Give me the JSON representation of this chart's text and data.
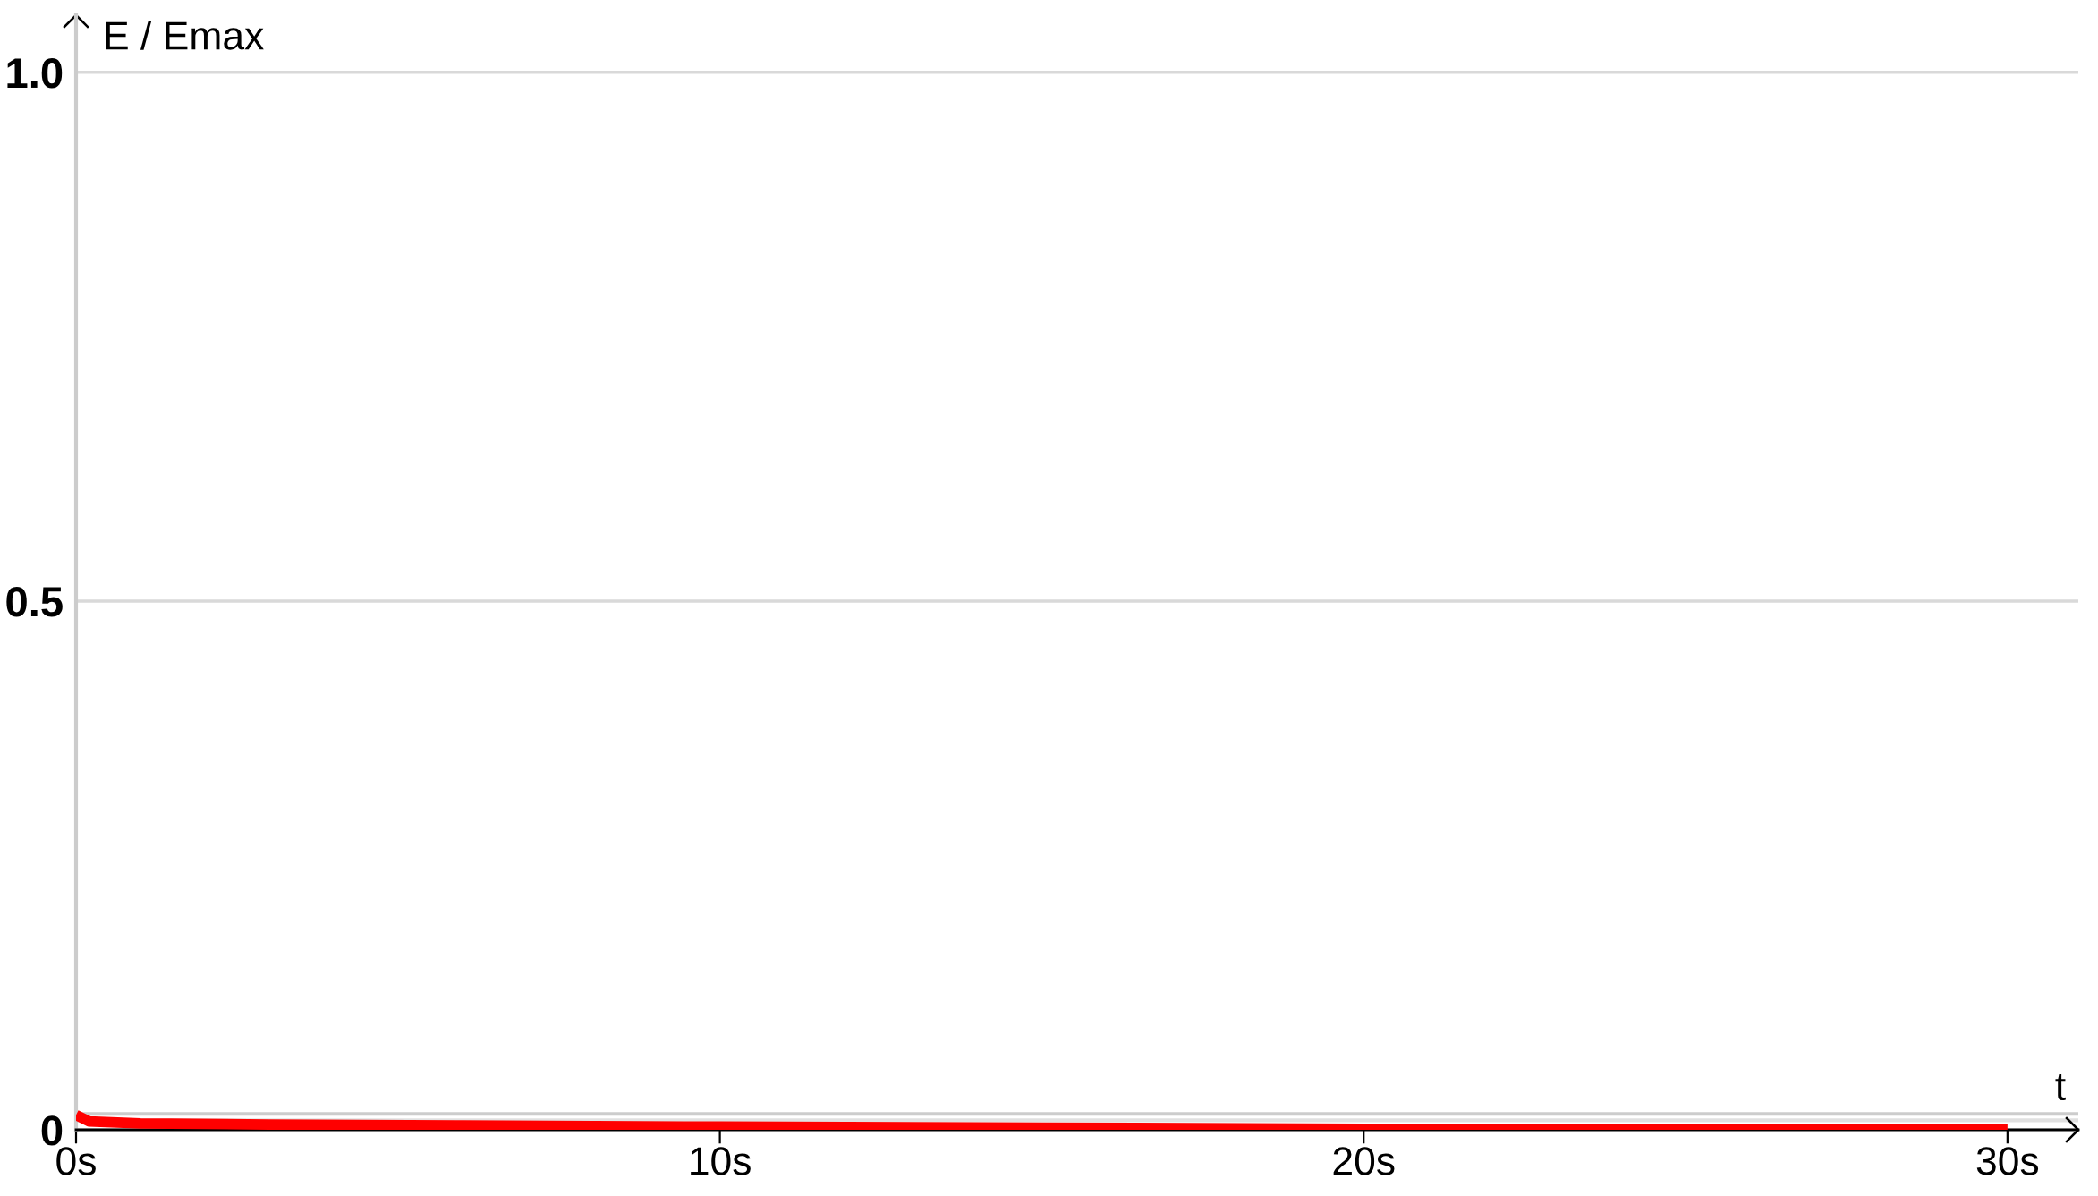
{
  "chart_data": {
    "type": "line",
    "xlabel": "t",
    "ylabel": "E / Emax",
    "x": [
      0,
      0.2,
      1,
      3,
      6,
      10,
      15,
      20,
      25,
      30
    ],
    "values": [
      0.014,
      0.008,
      0.006,
      0.005,
      0.004,
      0.003,
      0.002,
      0.001,
      0.001,
      0
    ],
    "color": "#ff0000",
    "xlim": [
      0,
      31.1
    ],
    "ylim": [
      0,
      1.054
    ],
    "xticks": [
      {
        "value": 0,
        "label": "0s"
      },
      {
        "value": 10,
        "label": "10s"
      },
      {
        "value": 20,
        "label": "20s"
      },
      {
        "value": 30,
        "label": "30s"
      }
    ],
    "yticks": [
      0,
      0.5,
      {
        "value": 1,
        "label": "1.0"
      }
    ],
    "grid": "y",
    "ref_lines": [
      {
        "axis": "y",
        "value": 0.015,
        "color": "#cccccc"
      },
      {
        "axis": "y",
        "value": 0.009,
        "color": "#e0e0e0"
      }
    ]
  }
}
